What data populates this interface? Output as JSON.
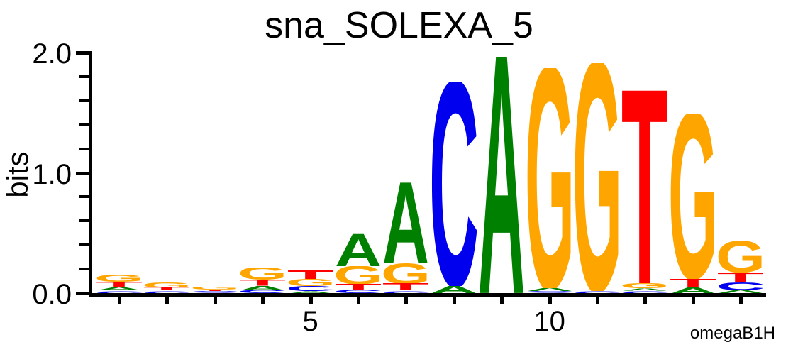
{
  "title": "sna_SOLEXA_5",
  "watermark": "omegaB1H",
  "chart_data": {
    "type": "sequence_logo",
    "title": "sna_SOLEXA_5",
    "ylabel": "bits",
    "ylim": [
      0,
      2.0
    ],
    "ytick_major": [
      0.0,
      1.0,
      2.0
    ],
    "ytick_major_labels": [
      "0.0",
      "1.0",
      "2.0"
    ],
    "ytick_minor_step": 0.2,
    "n_positions": 14,
    "xticks_labeled": [
      5,
      10
    ],
    "grid": false,
    "base_colors": {
      "A": "#008000",
      "C": "#0000EE",
      "G": "#FFA500",
      "T": "#FF0000"
    },
    "positions": [
      {
        "pos": 1,
        "stack": [
          {
            "base": "C",
            "bits": 0.02
          },
          {
            "base": "A",
            "bits": 0.025
          },
          {
            "base": "T",
            "bits": 0.05
          },
          {
            "base": "G",
            "bits": 0.06
          }
        ]
      },
      {
        "pos": 2,
        "stack": [
          {
            "base": "C",
            "bits": 0.02
          },
          {
            "base": "T",
            "bits": 0.025
          },
          {
            "base": "G",
            "bits": 0.045
          }
        ]
      },
      {
        "pos": 3,
        "stack": [
          {
            "base": "C",
            "bits": 0.015
          },
          {
            "base": "T",
            "bits": 0.015
          },
          {
            "base": "G",
            "bits": 0.025
          }
        ]
      },
      {
        "pos": 4,
        "stack": [
          {
            "base": "C",
            "bits": 0.025
          },
          {
            "base": "A",
            "bits": 0.035
          },
          {
            "base": "T",
            "bits": 0.05
          },
          {
            "base": "G",
            "bits": 0.1
          }
        ]
      },
      {
        "pos": 5,
        "stack": [
          {
            "base": "A",
            "bits": 0.02
          },
          {
            "base": "C",
            "bits": 0.04
          },
          {
            "base": "G",
            "bits": 0.06
          },
          {
            "base": "T",
            "bits": 0.07
          }
        ]
      },
      {
        "pos": 6,
        "stack": [
          {
            "base": "C",
            "bits": 0.025
          },
          {
            "base": "T",
            "bits": 0.05
          },
          {
            "base": "G",
            "bits": 0.15
          },
          {
            "base": "A",
            "bits": 0.27
          }
        ]
      },
      {
        "pos": 7,
        "stack": [
          {
            "base": "C",
            "bits": 0.02
          },
          {
            "base": "T",
            "bits": 0.06
          },
          {
            "base": "G",
            "bits": 0.17
          },
          {
            "base": "A",
            "bits": 0.67
          }
        ]
      },
      {
        "pos": 8,
        "stack": [
          {
            "base": "A",
            "bits": 0.06
          },
          {
            "base": "C",
            "bits": 1.69
          }
        ]
      },
      {
        "pos": 9,
        "stack": [
          {
            "base": "A",
            "bits": 1.97
          }
        ]
      },
      {
        "pos": 10,
        "stack": [
          {
            "base": "C",
            "bits": 0.015
          },
          {
            "base": "A",
            "bits": 0.025
          },
          {
            "base": "G",
            "bits": 1.83
          }
        ]
      },
      {
        "pos": 11,
        "stack": [
          {
            "base": "C",
            "bits": 0.02
          },
          {
            "base": "G",
            "bits": 1.89
          }
        ]
      },
      {
        "pos": 12,
        "stack": [
          {
            "base": "C",
            "bits": 0.02
          },
          {
            "base": "A",
            "bits": 0.02
          },
          {
            "base": "G",
            "bits": 0.04
          },
          {
            "base": "T",
            "bits": 1.61
          }
        ]
      },
      {
        "pos": 13,
        "stack": [
          {
            "base": "A",
            "bits": 0.05
          },
          {
            "base": "T",
            "bits": 0.07
          },
          {
            "base": "G",
            "bits": 1.37
          }
        ]
      },
      {
        "pos": 14,
        "stack": [
          {
            "base": "A",
            "bits": 0.025
          },
          {
            "base": "C",
            "bits": 0.065
          },
          {
            "base": "T",
            "bits": 0.08
          },
          {
            "base": "G",
            "bits": 0.26
          }
        ]
      }
    ]
  },
  "colors": {
    "background": "#FFFFFF",
    "axis": "#000000",
    "text": "#000000"
  }
}
